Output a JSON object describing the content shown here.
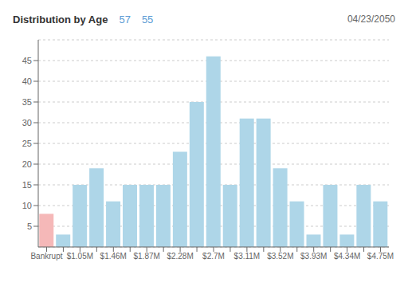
{
  "chart_data": {
    "type": "bar",
    "title": "Distribution by Age",
    "annotations": [
      "57",
      "55",
      "04/23/2050"
    ],
    "categories": [
      "Bankrupt",
      null,
      "$1.05M",
      null,
      "$1.46M",
      null,
      "$1.87M",
      null,
      "$2.28M",
      null,
      "$2.7M",
      null,
      "$3.11M",
      null,
      "$3.52M",
      null,
      "$3.93M",
      null,
      "$4.34M",
      null,
      "$4.75M"
    ],
    "values": [
      8,
      3,
      15,
      19,
      11,
      15,
      15,
      15,
      23,
      35,
      46,
      15,
      31,
      31,
      19,
      11,
      3,
      15,
      3,
      15,
      11
    ],
    "colors": [
      "#f5b8b8",
      "#aed6e8",
      "#aed6e8",
      "#aed6e8",
      "#aed6e8",
      "#aed6e8",
      "#aed6e8",
      "#aed6e8",
      "#aed6e8",
      "#aed6e8",
      "#aed6e8",
      "#aed6e8",
      "#aed6e8",
      "#aed6e8",
      "#aed6e8",
      "#aed6e8",
      "#aed6e8",
      "#aed6e8",
      "#aed6e8",
      "#aed6e8",
      "#aed6e8"
    ],
    "ylim": [
      0,
      50
    ],
    "yticks": [
      5,
      10,
      15,
      20,
      25,
      30,
      35,
      40,
      45
    ],
    "grid": true
  }
}
